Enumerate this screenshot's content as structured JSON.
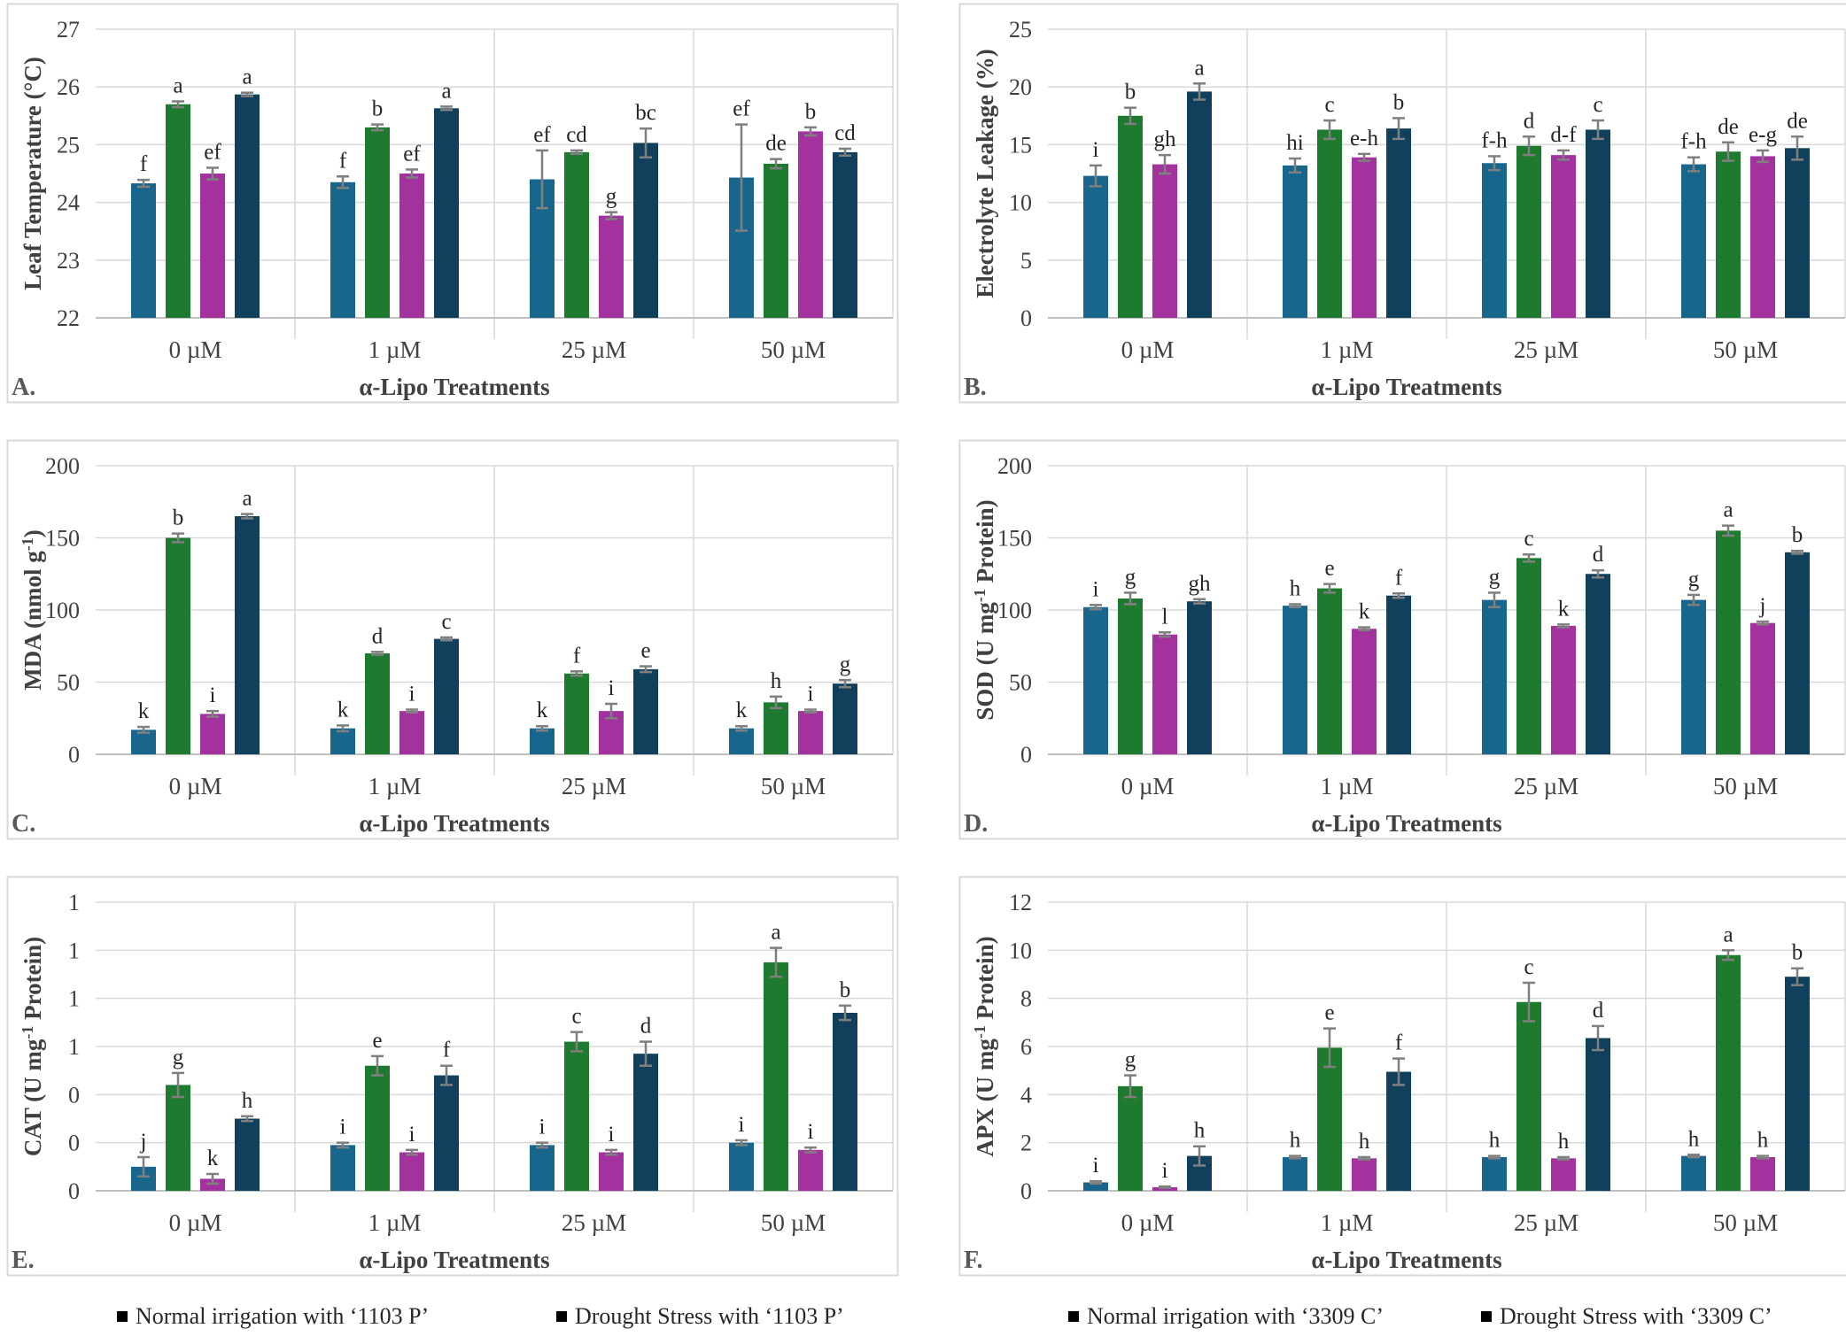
{
  "chart_data": [
    {
      "type": "bar",
      "panel_label": "A.",
      "ylabel": "Leaf Temperature (°C)",
      "xlabel": "α-Lipo Treatments",
      "ylim": [
        22,
        27
      ],
      "yticks": [
        22,
        23,
        24,
        25,
        26,
        27
      ],
      "ytick_labels": [
        "22",
        "23",
        "24",
        "25",
        "26",
        "27"
      ],
      "categories": [
        "0 µM",
        "1 µM",
        "25 µM",
        "50 µM"
      ],
      "series": [
        {
          "values": [
            24.33,
            24.35,
            24.4,
            24.43
          ],
          "errors": [
            0.06,
            0.1,
            0.5,
            0.92
          ],
          "labels": [
            "f",
            "f",
            "ef",
            "ef"
          ]
        },
        {
          "values": [
            25.7,
            25.3,
            24.87,
            24.67
          ],
          "errors": [
            0.05,
            0.05,
            0.03,
            0.08
          ],
          "labels": [
            "a",
            "b",
            "cd",
            "de"
          ]
        },
        {
          "values": [
            24.5,
            24.5,
            23.77,
            25.23
          ],
          "errors": [
            0.1,
            0.07,
            0.06,
            0.07
          ],
          "labels": [
            "ef",
            "ef",
            "g",
            "b"
          ]
        },
        {
          "values": [
            25.87,
            25.63,
            25.03,
            24.87
          ],
          "errors": [
            0.03,
            0.03,
            0.25,
            0.06
          ],
          "labels": [
            "a",
            "a",
            "bc",
            "cd"
          ]
        }
      ],
      "grid": true
    },
    {
      "type": "bar",
      "panel_label": "B.",
      "ylabel": "Electrolyte Leakage (%)",
      "xlabel": "α-Lipo Treatments",
      "ylim": [
        0,
        25
      ],
      "yticks": [
        0,
        5,
        10,
        15,
        20,
        25
      ],
      "ytick_labels": [
        "0",
        "5",
        "10",
        "15",
        "20",
        "25"
      ],
      "categories": [
        "0 µM",
        "1 µM",
        "25 µM",
        "50 µM"
      ],
      "series": [
        {
          "values": [
            12.3,
            13.2,
            13.4,
            13.3
          ],
          "errors": [
            0.9,
            0.6,
            0.6,
            0.6
          ],
          "labels": [
            "i",
            "hi",
            "f-h",
            "f-h"
          ]
        },
        {
          "values": [
            17.5,
            16.3,
            14.9,
            14.4
          ],
          "errors": [
            0.7,
            0.8,
            0.8,
            0.8
          ],
          "labels": [
            "b",
            "c",
            "d",
            "de"
          ]
        },
        {
          "values": [
            13.3,
            13.9,
            14.1,
            14.0
          ],
          "errors": [
            0.8,
            0.3,
            0.4,
            0.5
          ],
          "labels": [
            "gh",
            "e-h",
            "d-f",
            "e-g"
          ]
        },
        {
          "values": [
            19.6,
            16.4,
            16.3,
            14.7
          ],
          "errors": [
            0.7,
            0.9,
            0.8,
            1.0
          ],
          "labels": [
            "a",
            "b",
            "c",
            "de"
          ]
        }
      ],
      "grid": true
    },
    {
      "type": "bar",
      "panel_label": "C.",
      "ylabel": "MDA (nmol g-1)",
      "ylabel_parts": [
        "MDA (nmol g",
        "-1",
        ")"
      ],
      "xlabel": "α-Lipo Treatments",
      "ylim": [
        0,
        200
      ],
      "yticks": [
        0,
        50,
        100,
        150,
        200
      ],
      "ytick_labels": [
        "0",
        "50",
        "100",
        "150",
        "200"
      ],
      "categories": [
        "0 µM",
        "1 µM",
        "25 µM",
        "50 µM"
      ],
      "series": [
        {
          "values": [
            17,
            18,
            18,
            18
          ],
          "errors": [
            2,
            2,
            1.5,
            1.5
          ],
          "labels": [
            "k",
            "k",
            "k",
            "k"
          ]
        },
        {
          "values": [
            150,
            70,
            56,
            36
          ],
          "errors": [
            3,
            1,
            1.5,
            4
          ],
          "labels": [
            "b",
            "d",
            "f",
            "h"
          ]
        },
        {
          "values": [
            28,
            30,
            30,
            30
          ],
          "errors": [
            2,
            1,
            5,
            1
          ],
          "labels": [
            "i",
            "i",
            "i",
            "i"
          ]
        },
        {
          "values": [
            165,
            80,
            59,
            49
          ],
          "errors": [
            1.5,
            1,
            2,
            2.5
          ],
          "labels": [
            "a",
            "c",
            "e",
            "g"
          ]
        }
      ],
      "grid": true
    },
    {
      "type": "bar",
      "panel_label": "D.",
      "ylabel": "SOD (U mg-1 Protein)",
      "ylabel_parts": [
        "SOD (U mg",
        "-1",
        " Protein)"
      ],
      "xlabel": "α-Lipo Treatments",
      "ylim": [
        0,
        200
      ],
      "yticks": [
        0,
        50,
        100,
        150,
        200
      ],
      "ytick_labels": [
        "0",
        "50",
        "100",
        "150",
        "200"
      ],
      "categories": [
        "0 µM",
        "1 µM",
        "25 µM",
        "50 µM"
      ],
      "series": [
        {
          "values": [
            102,
            103,
            107,
            107
          ],
          "errors": [
            1.5,
            1,
            5,
            3.5
          ],
          "labels": [
            "i",
            "h",
            "g",
            "g"
          ]
        },
        {
          "values": [
            108,
            115,
            136,
            155
          ],
          "errors": [
            4,
            3,
            2.5,
            3.5
          ],
          "labels": [
            "g",
            "e",
            "c",
            "a"
          ]
        },
        {
          "values": [
            83,
            87,
            89,
            91
          ],
          "errors": [
            1.5,
            1,
            1,
            1
          ],
          "labels": [
            "l",
            "k",
            "k",
            "j"
          ]
        },
        {
          "values": [
            106,
            110,
            125,
            140
          ],
          "errors": [
            1.5,
            1.5,
            2.5,
            1
          ],
          "labels": [
            "gh",
            "f",
            "d",
            "b"
          ]
        }
      ],
      "grid": true
    },
    {
      "type": "bar",
      "panel_label": "E.",
      "ylabel": "CAT (U mg-1 Protein)",
      "ylabel_parts": [
        "CAT (U mg",
        "-1",
        " Protein)"
      ],
      "xlabel": "α-Lipo Treatments",
      "ylim": [
        0,
        1.2
      ],
      "yticks": [
        0,
        0.2,
        0.4,
        0.6,
        0.8,
        1.0,
        1.2
      ],
      "ytick_labels": [
        "0",
        "0",
        "0",
        "1",
        "1",
        "1",
        "1"
      ],
      "categories": [
        "0 µM",
        "1 µM",
        "25 µM",
        "50 µM"
      ],
      "series": [
        {
          "values": [
            0.1,
            0.19,
            0.19,
            0.2
          ],
          "errors": [
            0.04,
            0.01,
            0.01,
            0.01
          ],
          "labels": [
            "j",
            "i",
            "i",
            "i"
          ]
        },
        {
          "values": [
            0.44,
            0.52,
            0.62,
            0.95
          ],
          "errors": [
            0.05,
            0.04,
            0.04,
            0.06
          ],
          "labels": [
            "g",
            "e",
            "c",
            "a"
          ]
        },
        {
          "values": [
            0.05,
            0.16,
            0.16,
            0.17
          ],
          "errors": [
            0.02,
            0.01,
            0.01,
            0.01
          ],
          "labels": [
            "k",
            "i",
            "i",
            "i"
          ]
        },
        {
          "values": [
            0.3,
            0.48,
            0.57,
            0.74
          ],
          "errors": [
            0.01,
            0.04,
            0.05,
            0.03
          ],
          "labels": [
            "h",
            "f",
            "d",
            "b"
          ]
        }
      ],
      "grid": true
    },
    {
      "type": "bar",
      "panel_label": "F.",
      "ylabel": "APX (U mg-1 Protein)",
      "ylabel_parts": [
        "APX (U mg",
        "-1",
        " Protein)"
      ],
      "xlabel": "α-Lipo Treatments",
      "ylim": [
        0,
        12
      ],
      "yticks": [
        0,
        2,
        4,
        6,
        8,
        10,
        12
      ],
      "ytick_labels": [
        "0",
        "2",
        "4",
        "6",
        "8",
        "10",
        "12"
      ],
      "categories": [
        "0 µM",
        "1 µM",
        "25 µM",
        "50 µM"
      ],
      "series": [
        {
          "values": [
            0.35,
            1.4,
            1.4,
            1.45
          ],
          "errors": [
            0.05,
            0.05,
            0.05,
            0.05
          ],
          "labels": [
            "i",
            "h",
            "h",
            "h"
          ]
        },
        {
          "values": [
            4.35,
            5.95,
            7.85,
            9.8
          ],
          "errors": [
            0.45,
            0.8,
            0.8,
            0.2
          ],
          "labels": [
            "g",
            "e",
            "c",
            "a"
          ]
        },
        {
          "values": [
            0.15,
            1.35,
            1.35,
            1.4
          ],
          "errors": [
            0.03,
            0.05,
            0.05,
            0.05
          ],
          "labels": [
            "i",
            "h",
            "h",
            "h"
          ]
        },
        {
          "values": [
            1.45,
            4.95,
            6.35,
            8.9
          ],
          "errors": [
            0.4,
            0.55,
            0.5,
            0.35
          ],
          "labels": [
            "h",
            "f",
            "d",
            "b"
          ]
        }
      ],
      "grid": true
    }
  ],
  "series_colors": [
    "#19668c",
    "#1e7a2e",
    "#a3329f",
    "#11405c"
  ],
  "axis_color": "#595959",
  "grid_color": "#d9d9d9",
  "frame_color": "#d9d9d9",
  "errorbar_color": "#7f7f7f",
  "legend": [
    {
      "label": "Normal irrigation with ‘1103 P’"
    },
    {
      "label": "Drought Stress with ‘1103 P’"
    },
    {
      "label": "Normal irrigation with ‘3309 C’"
    },
    {
      "label": "Drought Stress with ‘3309 C’"
    }
  ]
}
